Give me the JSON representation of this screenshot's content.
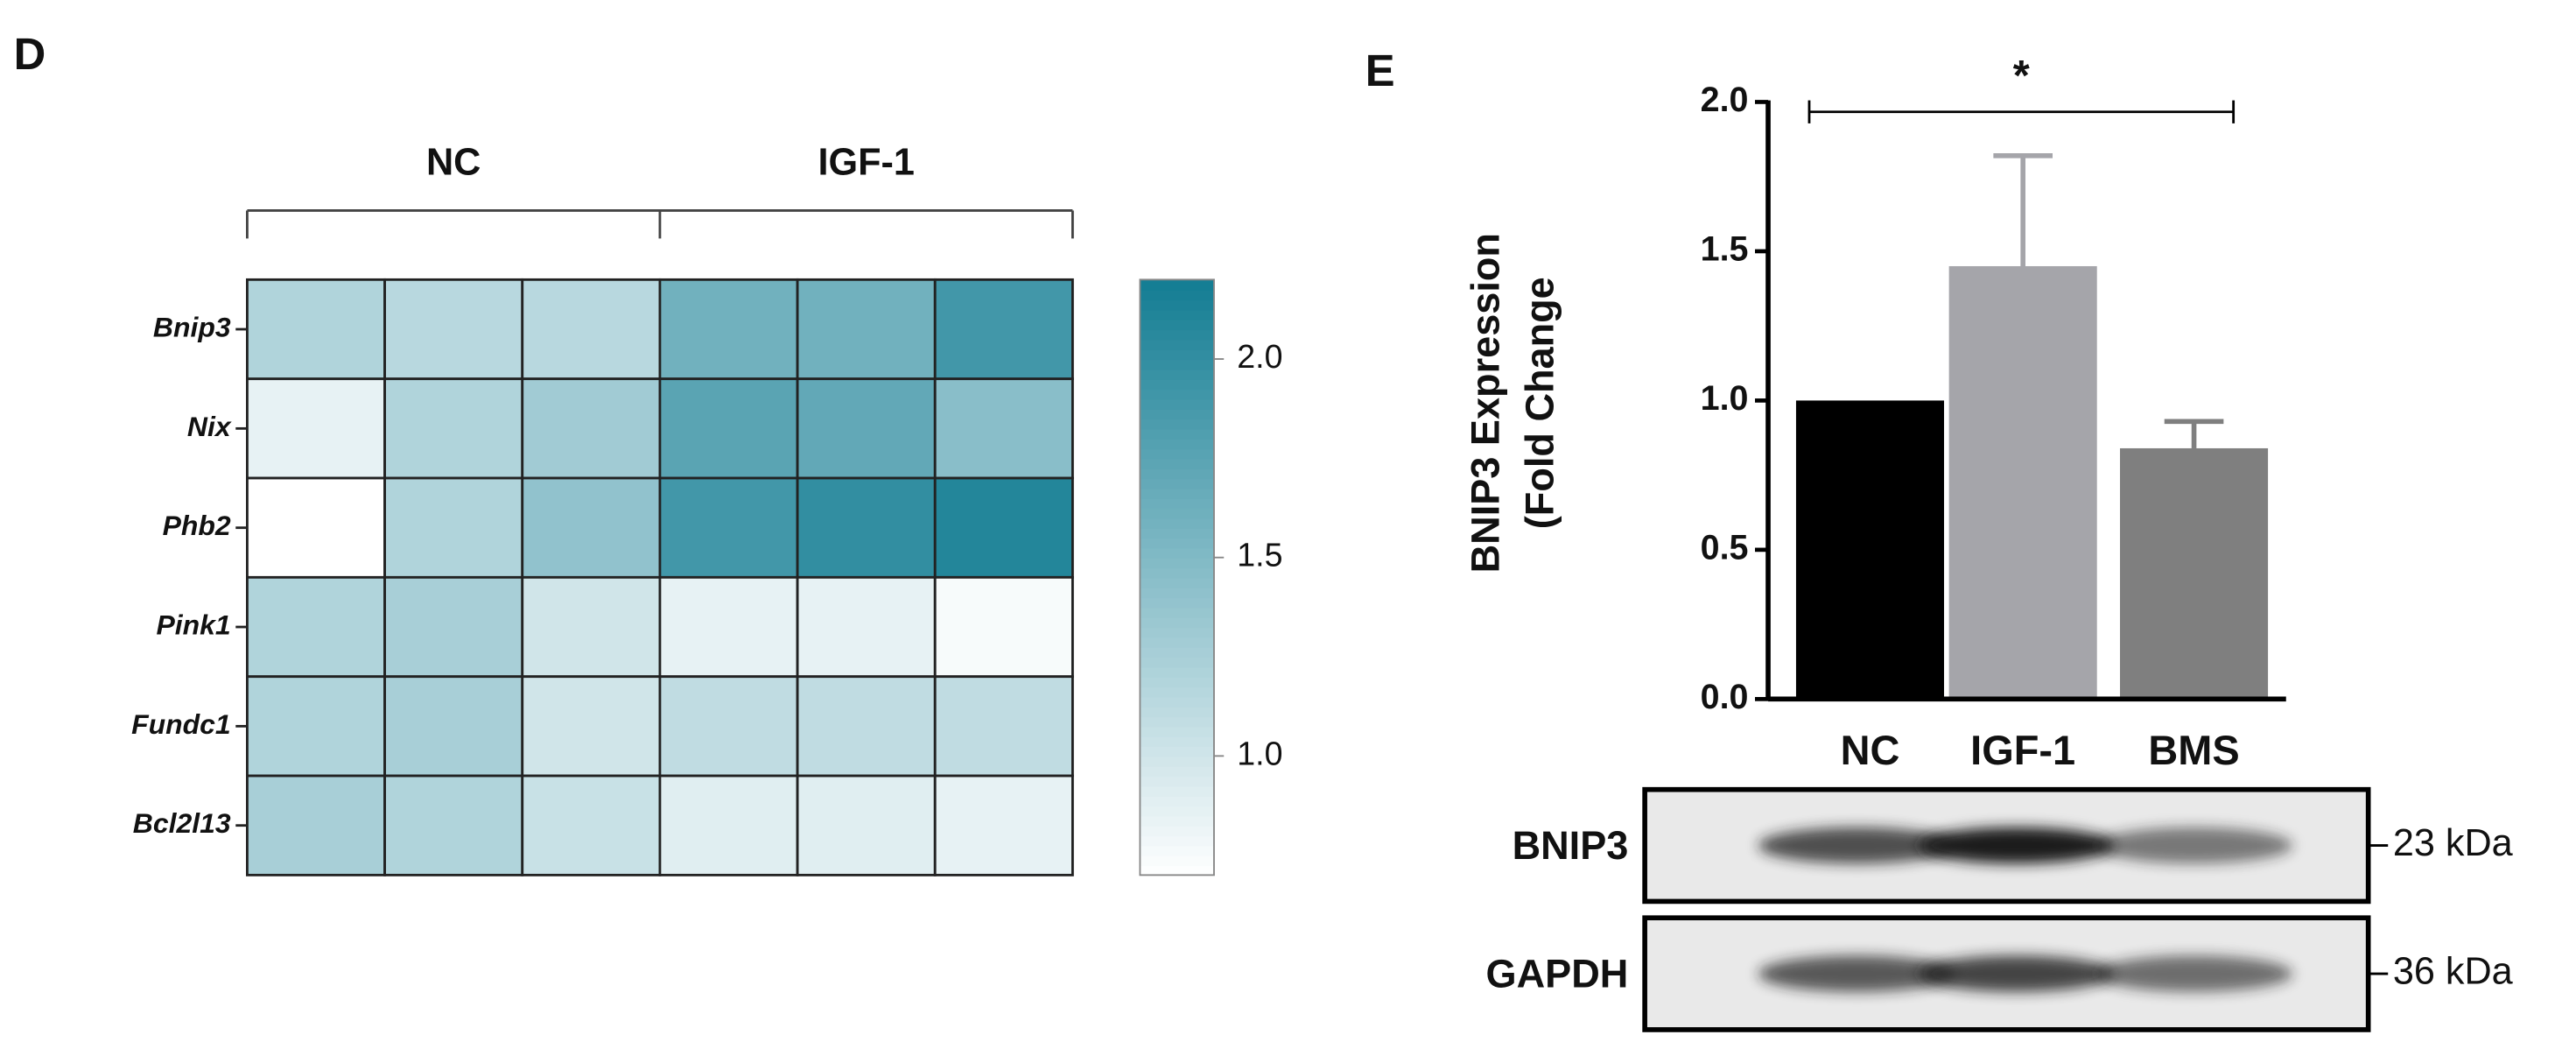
{
  "chart_data": [
    {
      "type": "heatmap",
      "panel": "D",
      "groups": [
        "NC",
        "IGF-1"
      ],
      "rows": [
        "Bnip3",
        "Nix",
        "Phb2",
        "Pink1",
        "Fundc1",
        "Bcl2l13"
      ],
      "values": [
        [
          1.2,
          1.15,
          1.15,
          1.6,
          1.6,
          1.9
        ],
        [
          0.85,
          1.2,
          1.3,
          1.75,
          1.7,
          1.45
        ],
        [
          0.7,
          1.2,
          1.4,
          1.9,
          2.0,
          2.1
        ],
        [
          1.2,
          1.25,
          1.0,
          0.85,
          0.85,
          0.75
        ],
        [
          1.2,
          1.25,
          1.0,
          1.1,
          1.1,
          1.1
        ],
        [
          1.25,
          1.2,
          1.05,
          0.9,
          0.9,
          0.85
        ]
      ],
      "colormap": [
        "#ffffff",
        "#137d93"
      ],
      "vlim": [
        0.7,
        2.2
      ],
      "cticks": [
        {
          "value": 1,
          "label": "1.0"
        },
        {
          "value": 1.5,
          "label": "1.5"
        },
        {
          "value": 2,
          "label": "2.0"
        }
      ]
    },
    {
      "type": "bar",
      "panel": "E",
      "ylabel": [
        "BNIP3 Expression",
        "(Fold Change"
      ],
      "categories": [
        "NC",
        "IGF-1",
        "BMS"
      ],
      "values": [
        1.0,
        1.45,
        0.84
      ],
      "errors": [
        0,
        0.37,
        0.09
      ],
      "colors": [
        "#000000",
        "#a5a5aa",
        "#7f7f7f"
      ],
      "ylim": [
        0,
        2.0
      ],
      "yticks": [
        {
          "value": 0,
          "label": "0.0"
        },
        {
          "value": 0.5,
          "label": "0.5"
        },
        {
          "value": 1,
          "label": "1.0"
        },
        {
          "value": 1.5,
          "label": "1.5"
        },
        {
          "value": 2,
          "label": "2.0"
        }
      ],
      "significance": {
        "from": 0,
        "to": 2,
        "label": "*"
      },
      "blot": [
        {
          "label": "BNIP3",
          "size": "23 kDa"
        },
        {
          "label": "GAPDH",
          "size": "36 kDa"
        }
      ]
    }
  ]
}
